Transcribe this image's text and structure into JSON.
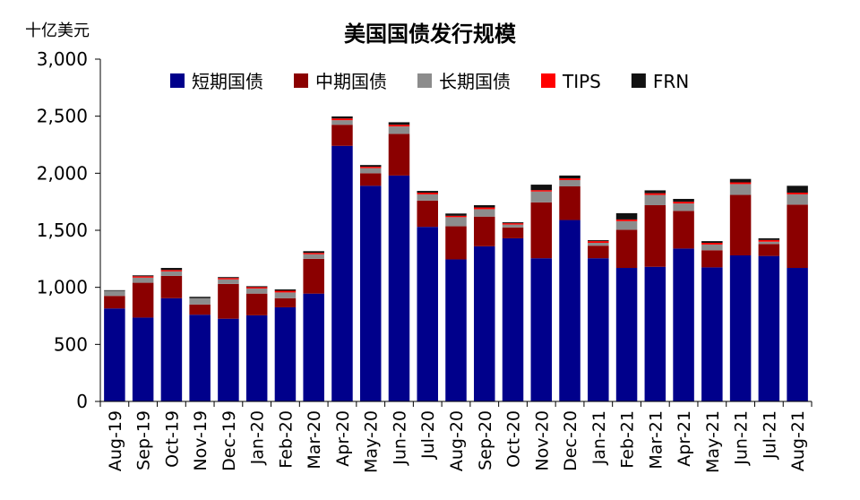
{
  "chart_data": {
    "type": "bar",
    "stacked": true,
    "title": "美国国债发行规模",
    "unit_label": "十亿美元",
    "ylim": [
      0,
      3000
    ],
    "yticks": [
      0,
      500,
      1000,
      1500,
      2000,
      2500,
      3000
    ],
    "ytick_labels": [
      "0",
      "500",
      "1,000",
      "1,500",
      "2,000",
      "2,500",
      "3,000"
    ],
    "legend_position": "top",
    "categories": [
      "Aug-19",
      "Sep-19",
      "Oct-19",
      "Nov-19",
      "Dec-19",
      "Jan-20",
      "Feb-20",
      "Mar-20",
      "Apr-20",
      "May-20",
      "Jun-20",
      "Jul-20",
      "Aug-20",
      "Sep-20",
      "Oct-20",
      "Nov-20",
      "Dec-20",
      "Jan-21",
      "Feb-21",
      "Mar-21",
      "Apr-21",
      "May-21",
      "Jun-21",
      "Jul-21",
      "Aug-21"
    ],
    "series": [
      {
        "name": "短期国债",
        "color": "#00008B",
        "values": [
          815,
          735,
          905,
          760,
          725,
          755,
          825,
          945,
          2240,
          1890,
          1980,
          1530,
          1245,
          1360,
          1430,
          1255,
          1590,
          1255,
          1170,
          1180,
          1340,
          1175,
          1280,
          1275,
          1170
        ]
      },
      {
        "name": "中期国债",
        "color": "#8B0000",
        "values": [
          110,
          305,
          195,
          90,
          305,
          190,
          80,
          305,
          185,
          110,
          365,
          230,
          290,
          260,
          95,
          490,
          295,
          110,
          335,
          540,
          330,
          150,
          530,
          105,
          555
        ]
      },
      {
        "name": "长期国债",
        "color": "#8C8C8C",
        "values": [
          45,
          45,
          40,
          55,
          40,
          45,
          50,
          40,
          40,
          45,
          65,
          55,
          80,
          65,
          25,
          95,
          55,
          25,
          75,
          90,
          65,
          50,
          95,
          20,
          90
        ]
      },
      {
        "name": "TIPS",
        "color": "#FF0000",
        "values": [
          0,
          12,
          12,
          0,
          12,
          12,
          15,
          12,
          15,
          12,
          15,
          15,
          12,
          15,
          12,
          12,
          15,
          15,
          15,
          15,
          15,
          15,
          15,
          15,
          15
        ]
      },
      {
        "name": "FRN",
        "color": "#111111",
        "values": [
          5,
          8,
          18,
          12,
          8,
          8,
          12,
          15,
          18,
          15,
          22,
          15,
          20,
          20,
          8,
          48,
          25,
          8,
          55,
          25,
          25,
          15,
          30,
          15,
          60
        ]
      }
    ]
  }
}
